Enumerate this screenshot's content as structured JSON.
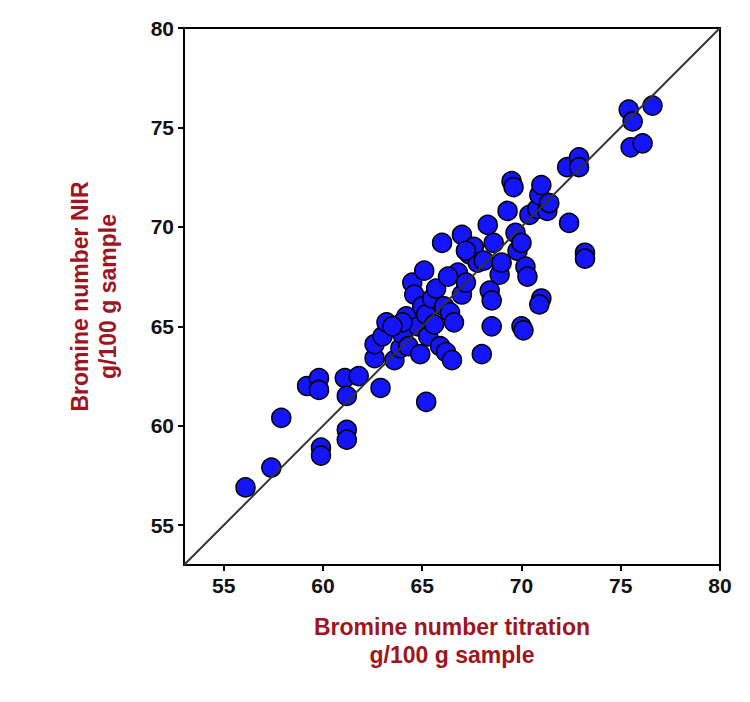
{
  "chart_data": {
    "type": "scatter",
    "x_label": "Bromine number titration\ng/100 g sample",
    "y_label": "Bromine number NIR\ng/100 g sample",
    "xlim": [
      53,
      80
    ],
    "ylim": [
      53,
      80
    ],
    "xticks": [
      55,
      60,
      65,
      70,
      75,
      80
    ],
    "yticks": [
      55,
      60,
      65,
      70,
      75,
      80
    ],
    "color": "#1414ff",
    "marker": "circle",
    "grid": false,
    "x": [
      56.1,
      57.4,
      57.9,
      59.2,
      59.8,
      59.8,
      59.9,
      59.9,
      61.1,
      61.2,
      61.2,
      61.2,
      61.8,
      62.6,
      62.9,
      62.6,
      63.0,
      63.2,
      63.6,
      63.9,
      64.0,
      64.2,
      64.3,
      64.5,
      64.6,
      64.8,
      64.9,
      65.0,
      65.1,
      65.2,
      65.2,
      65.3,
      65.5,
      65.6,
      65.9,
      66.0,
      66.1,
      66.2,
      66.4,
      66.5,
      66.6,
      66.8,
      67.0,
      67.0,
      67.2,
      67.4,
      67.6,
      67.8,
      68.0,
      68.1,
      68.3,
      68.4,
      68.5,
      68.5,
      68.6,
      68.9,
      69.0,
      69.3,
      69.5,
      69.6,
      69.7,
      69.8,
      70.0,
      70.0,
      70.1,
      70.2,
      70.3,
      70.4,
      70.8,
      70.9,
      71.0,
      71.0,
      70.9,
      71.3,
      71.4,
      72.3,
      72.4,
      72.9,
      72.9,
      73.2,
      73.2,
      75.4,
      75.6,
      75.5,
      76.1,
      76.6,
      64.0,
      63.5,
      65.7,
      66.3,
      67.2
    ],
    "values": [
      56.9,
      57.9,
      60.4,
      62.0,
      62.4,
      61.8,
      58.9,
      58.5,
      62.4,
      61.5,
      59.8,
      59.3,
      62.5,
      63.4,
      61.9,
      64.1,
      64.5,
      65.2,
      63.3,
      63.9,
      64.6,
      65.5,
      64.0,
      67.2,
      66.6,
      65.0,
      63.6,
      66.0,
      67.8,
      61.2,
      65.6,
      64.5,
      66.4,
      65.1,
      64.0,
      69.2,
      66.0,
      63.7,
      65.7,
      63.3,
      65.2,
      67.7,
      69.6,
      66.6,
      67.2,
      68.6,
      69.0,
      68.2,
      63.6,
      68.3,
      70.1,
      66.8,
      66.3,
      65.0,
      69.2,
      67.6,
      68.2,
      70.8,
      72.3,
      72.0,
      69.7,
      68.8,
      69.2,
      65.0,
      64.8,
      68.0,
      67.5,
      70.6,
      70.9,
      71.6,
      72.1,
      66.4,
      66.1,
      70.8,
      71.2,
      73.0,
      70.2,
      73.5,
      73.0,
      68.7,
      68.4,
      75.9,
      75.3,
      74.0,
      74.2,
      76.1,
      65.2,
      65.0,
      66.9,
      67.5,
      68.8
    ]
  }
}
